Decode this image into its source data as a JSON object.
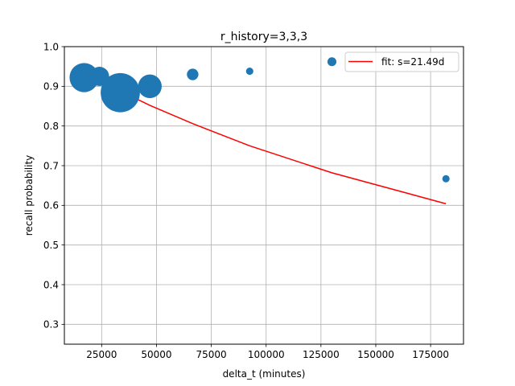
{
  "chart_data": {
    "type": "scatter",
    "title": "r_history=3,3,3",
    "xlabel": "delta_t (minutes)",
    "ylabel": "recall probability",
    "xlim": [
      8000,
      190000
    ],
    "ylim": [
      0.25,
      1.0
    ],
    "grid": true,
    "x_ticks": [
      25000,
      50000,
      75000,
      100000,
      125000,
      150000,
      175000
    ],
    "x_tick_labels": [
      "25000",
      "50000",
      "75000",
      "100000",
      "125000",
      "150000",
      "175000"
    ],
    "y_ticks": [
      0.3,
      0.4,
      0.5,
      0.6,
      0.7,
      0.8,
      0.9,
      1.0
    ],
    "y_tick_labels": [
      "0.3",
      "0.4",
      "0.5",
      "0.6",
      "0.7",
      "0.8",
      "0.9",
      "1.0"
    ],
    "point_color": "#1f77b4",
    "fit_color": "#ff0000",
    "points": [
      {
        "x": 17000,
        "y": 0.922,
        "weight": 32
      },
      {
        "x": 24000,
        "y": 0.925,
        "weight": 14
      },
      {
        "x": 33500,
        "y": 0.884,
        "weight": 58
      },
      {
        "x": 47000,
        "y": 0.9,
        "weight": 21
      },
      {
        "x": 66500,
        "y": 0.93,
        "weight": 5
      },
      {
        "x": 92500,
        "y": 0.938,
        "weight": 2
      },
      {
        "x": 130000,
        "y": 0.962,
        "weight": 3
      },
      {
        "x": 182000,
        "y": 0.667,
        "weight": 2
      }
    ],
    "fit_series": {
      "name": "fit: s=21.49d",
      "x": [
        17000,
        24000,
        33500,
        47000,
        66500,
        92500,
        130000,
        182000
      ],
      "y": [
        0.94,
        0.918,
        0.888,
        0.852,
        0.806,
        0.75,
        0.682,
        0.604
      ]
    },
    "legend": {
      "location": "top-right",
      "label": "fit: s=21.49d"
    }
  }
}
